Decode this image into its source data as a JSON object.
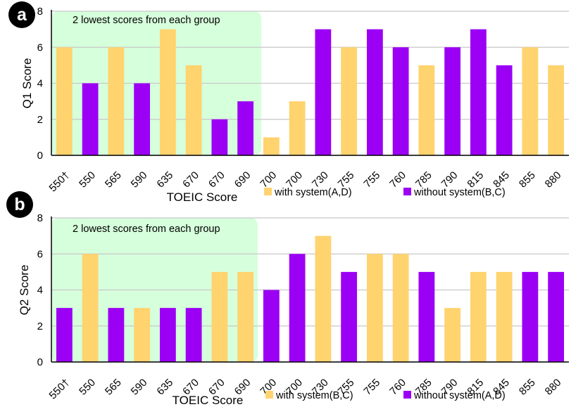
{
  "colors": {
    "with_system": "#FFD36E",
    "without_system": "#9B00F5",
    "highlight_fill": "#D6FFDC",
    "grid": "#C8C8C8",
    "axis": "#000000",
    "badge": "#000000"
  },
  "chart_data": [
    {
      "panel_label": "a",
      "type": "bar",
      "title": "",
      "xlabel": "TOEIC Score",
      "ylabel": "Q1 Score",
      "ylim": [
        0,
        8
      ],
      "yticks": [
        0,
        2,
        4,
        6,
        8
      ],
      "grid": true,
      "annotation": "2 lowest scores from each group",
      "highlight_categories_count": 8,
      "legend": [
        {
          "label": "with system(A,D)",
          "group": "with_system"
        },
        {
          "label": "without system(B,C)",
          "group": "without_system"
        }
      ],
      "categories": [
        "550†",
        "550",
        "565",
        "590",
        "635",
        "670",
        "670",
        "690",
        "700",
        "700",
        "730",
        "755",
        "755",
        "760",
        "785",
        "790",
        "815",
        "845",
        "855",
        "880"
      ],
      "values": [
        6,
        4,
        6,
        4,
        7,
        5,
        2,
        3,
        1,
        3,
        7,
        6,
        7,
        6,
        5,
        6,
        7,
        5,
        6,
        5
      ],
      "groups": [
        "with_system",
        "without_system",
        "with_system",
        "without_system",
        "with_system",
        "with_system",
        "without_system",
        "without_system",
        "with_system",
        "with_system",
        "without_system",
        "with_system",
        "without_system",
        "without_system",
        "with_system",
        "without_system",
        "without_system",
        "without_system",
        "with_system",
        "with_system"
      ]
    },
    {
      "panel_label": "b",
      "type": "bar",
      "title": "",
      "xlabel": "TOEIC Score",
      "ylabel": "Q2 Score",
      "ylim": [
        0,
        8
      ],
      "yticks": [
        0,
        2,
        4,
        6,
        8
      ],
      "grid": true,
      "annotation": "2 lowest scores from each group",
      "highlight_categories_count": 8,
      "legend": [
        {
          "label": "with system(B,C)",
          "group": "with_system"
        },
        {
          "label": "without system(A,D)",
          "group": "without_system"
        }
      ],
      "categories": [
        "550†",
        "550",
        "565",
        "590",
        "635",
        "670",
        "670",
        "690",
        "700",
        "700",
        "730",
        "755",
        "755",
        "760",
        "785",
        "790",
        "815",
        "845",
        "855",
        "880"
      ],
      "values": [
        3,
        6,
        3,
        3,
        3,
        3,
        5,
        5,
        4,
        6,
        7,
        5,
        6,
        6,
        5,
        3,
        5,
        5,
        5,
        5
      ],
      "groups": [
        "without_system",
        "with_system",
        "without_system",
        "with_system",
        "without_system",
        "without_system",
        "with_system",
        "with_system",
        "without_system",
        "without_system",
        "with_system",
        "without_system",
        "with_system",
        "with_system",
        "without_system",
        "with_system",
        "with_system",
        "with_system",
        "without_system",
        "without_system"
      ]
    }
  ]
}
